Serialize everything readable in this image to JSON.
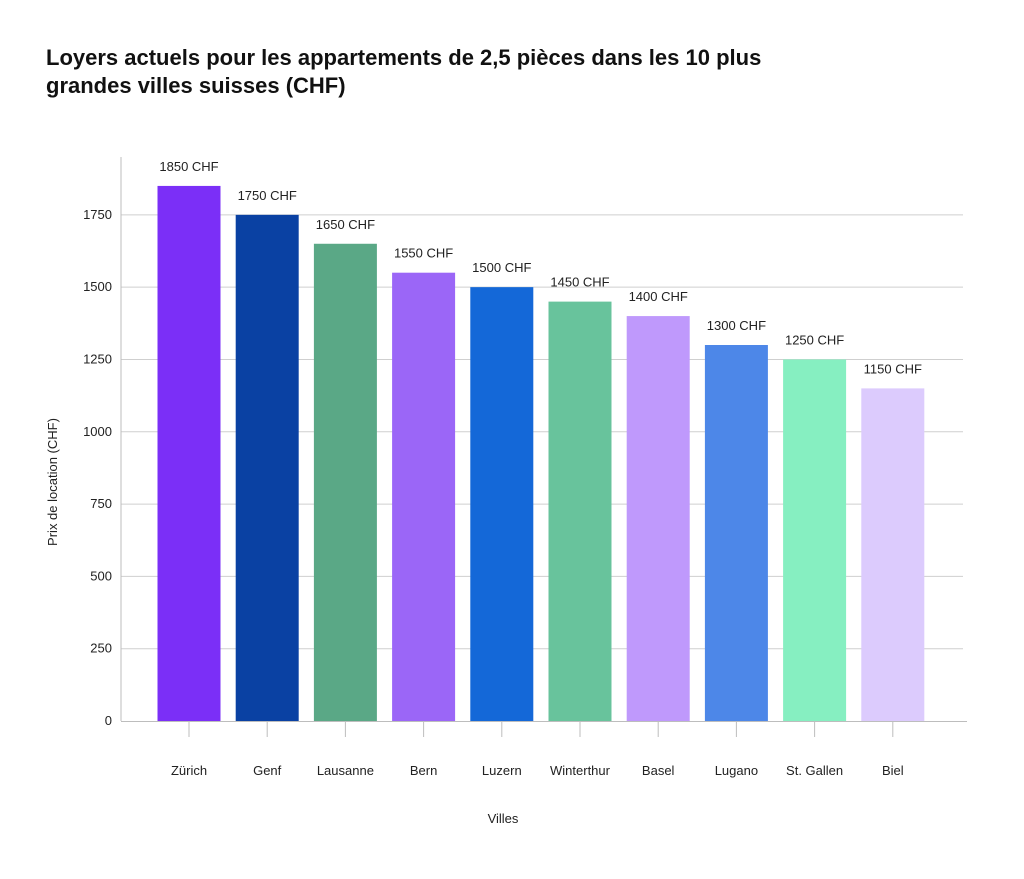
{
  "chart_data": {
    "type": "bar",
    "title": "Loyers actuels pour les appartements de 2,5 pièces dans les 10 plus grandes villes suisses (CHF)",
    "xlabel": "Villes",
    "ylabel": "Prix de location (CHF)",
    "categories": [
      "Zürich",
      "Genf",
      "Lausanne",
      "Bern",
      "Luzern",
      "Winterthur",
      "Basel",
      "Lugano",
      "St. Gallen",
      "Biel"
    ],
    "values": [
      1850,
      1750,
      1650,
      1550,
      1500,
      1450,
      1400,
      1300,
      1250,
      1150
    ],
    "value_labels": [
      "1850 CHF",
      "1750 CHF",
      "1650 CHF",
      "1550 CHF",
      "1500 CHF",
      "1450 CHF",
      "1400 CHF",
      "1300 CHF",
      "1250 CHF",
      "1150 CHF"
    ],
    "colors": [
      "#7b2ff7",
      "#0a41a3",
      "#5aa886",
      "#9b66f7",
      "#1468d8",
      "#68c39c",
      "#bf99fc",
      "#4d87e8",
      "#86efc1",
      "#dccbfd"
    ],
    "yticks": [
      0,
      250,
      500,
      750,
      1000,
      1250,
      1500,
      1750
    ],
    "ylim": [
      0,
      1950
    ],
    "grid": true,
    "legend": "none"
  }
}
